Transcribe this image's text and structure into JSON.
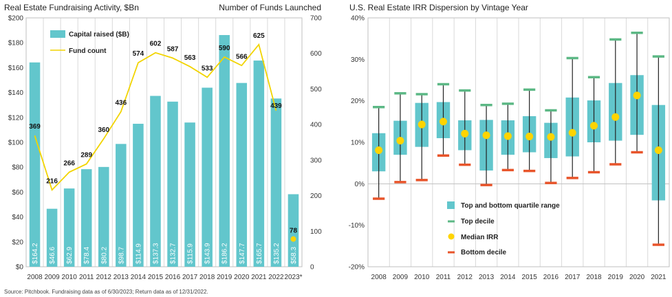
{
  "footnote": "Source: Pitchbook. Fundraising data as of 6/30/2023; Return data as of 12/31/2022.",
  "colors": {
    "bar": "#62c6cc",
    "line": "#f2d400",
    "median": "#ffd400",
    "top_decile": "#5cb885",
    "bottom_decile": "#e8542a",
    "grid": "#d9d9d9"
  },
  "chart_data": [
    {
      "type": "bar",
      "title": "Real Estate Fundraising Activity, $Bn",
      "y2label": "Number of Funds Launched",
      "categories": [
        "2008",
        "2009",
        "2010",
        "2011",
        "2012",
        "2013",
        "2014",
        "2015",
        "2016",
        "2017",
        "2018",
        "2019",
        "2020",
        "2021",
        "2022",
        "2023*"
      ],
      "ylim": [
        0,
        200
      ],
      "yticks": [
        "$0",
        "$20",
        "$40",
        "$60",
        "$80",
        "$100",
        "$120",
        "$140",
        "$160",
        "$180",
        "$200"
      ],
      "y2lim": [
        0,
        700
      ],
      "y2ticks": [
        "0",
        "100",
        "200",
        "300",
        "400",
        "500",
        "600",
        "700"
      ],
      "series": [
        {
          "name": "Capital raised ($B)",
          "type": "bar",
          "axis": "left",
          "values": [
            164.2,
            46.6,
            62.9,
            78.4,
            80.2,
            98.7,
            114.9,
            137.3,
            132.7,
            115.9,
            143.9,
            186.2,
            147.7,
            165.7,
            135.2,
            58.3
          ],
          "labels": [
            "$164.2",
            "$46.6",
            "$62.9",
            "$78.4",
            "$80.2",
            "$98.7",
            "$114.9",
            "$137.3",
            "$132.7",
            "$115.9",
            "$143.9",
            "$186.2",
            "$147.7",
            "$165.7",
            "$135.2",
            "$58.3"
          ]
        },
        {
          "name": "Fund count",
          "type": "line",
          "axis": "right",
          "values": [
            369,
            216,
            266,
            289,
            360,
            436,
            574,
            602,
            587,
            563,
            533,
            590,
            566,
            625,
            439,
            78
          ],
          "labels": [
            "369",
            "216",
            "266",
            "289",
            "360",
            "436",
            "574",
            "602",
            "587",
            "563",
            "533",
            "590",
            "566",
            "625",
            "439",
            "78"
          ]
        }
      ],
      "grid": "vertical",
      "legend": "top-left"
    },
    {
      "type": "boxplot",
      "title": "U.S. Real Estate IRR Dispersion by Vintage Year",
      "categories": [
        "2008",
        "2009",
        "2010",
        "2011",
        "2012",
        "2013",
        "2014",
        "2015",
        "2016",
        "2017",
        "2018",
        "2019",
        "2020",
        "2021"
      ],
      "ylim": [
        -20,
        40
      ],
      "yticks": [
        "-20%",
        "-10%",
        "0%",
        "10%",
        "20%",
        "30%",
        "40%"
      ],
      "top_decile": [
        18.5,
        21.8,
        21.6,
        24.0,
        22.5,
        19.0,
        19.3,
        22.7,
        17.7,
        30.3,
        25.7,
        34.8,
        36.4,
        30.7
      ],
      "q3": [
        12.2,
        15.2,
        19.5,
        19.7,
        15.3,
        15.4,
        15.3,
        16.3,
        14.7,
        20.8,
        20.1,
        24.3,
        26.2,
        19.0
      ],
      "median": [
        8.1,
        10.4,
        14.3,
        15.0,
        12.1,
        11.7,
        11.5,
        11.4,
        11.3,
        12.3,
        14.0,
        16.1,
        21.3,
        8.1
      ],
      "q1": [
        3.0,
        7.0,
        8.9,
        11.0,
        8.1,
        3.2,
        7.0,
        7.6,
        6.2,
        6.6,
        10.0,
        10.4,
        11.8,
        -4.0
      ],
      "bottom_decile": [
        -3.6,
        0.4,
        0.9,
        6.8,
        4.6,
        -0.3,
        3.3,
        3.1,
        0.2,
        1.4,
        2.8,
        4.7,
        7.6,
        -14.7
      ],
      "legend": [
        "Top and bottom quartile range",
        "Top decile",
        "Median IRR",
        "Bottom decile"
      ],
      "legend_position": "lower-left",
      "grid": "vertical"
    }
  ]
}
